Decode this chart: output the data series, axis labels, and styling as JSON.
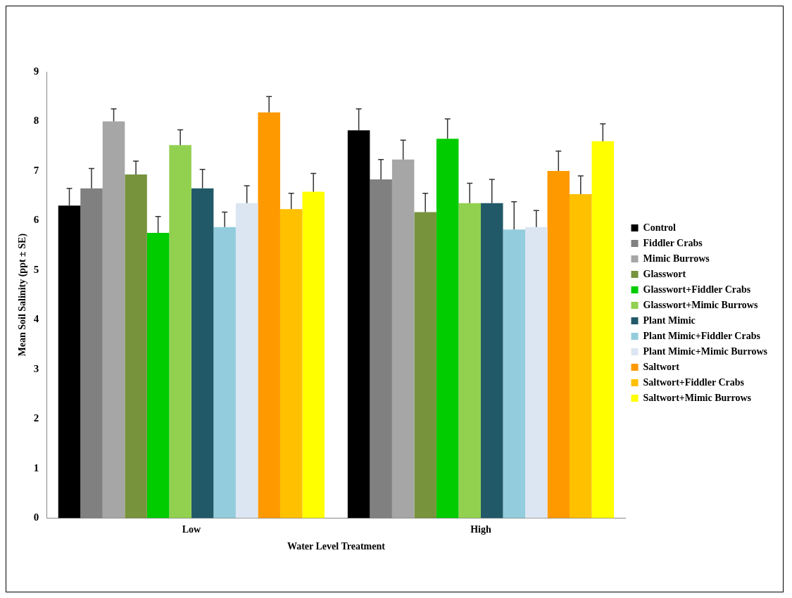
{
  "chart_data": {
    "type": "bar",
    "xlabel": "Water Level Treatment",
    "ylabel": "Mean Soil Salinity (ppt ± SE)",
    "categories": [
      "Low",
      "High"
    ],
    "ylim": [
      0,
      9
    ],
    "yticks": [
      0,
      1,
      2,
      3,
      4,
      5,
      6,
      7,
      8,
      9
    ],
    "grid": false,
    "legend": "right",
    "series": [
      {
        "name": "Control",
        "color": "#000000",
        "values": [
          6.3,
          7.82
        ],
        "errors": [
          [
            6.3,
            6.65
          ],
          [
            7.82,
            8.25
          ]
        ]
      },
      {
        "name": "Fiddler Crabs",
        "color": "#808080",
        "values": [
          6.65,
          6.83
        ],
        "errors": [
          [
            6.65,
            7.05
          ],
          [
            6.83,
            7.23
          ]
        ]
      },
      {
        "name": "Mimic Burrows",
        "color": "#a6a6a6",
        "values": [
          8.0,
          7.23
        ],
        "errors": [
          [
            8.0,
            8.25
          ],
          [
            7.23,
            7.62
          ]
        ]
      },
      {
        "name": "Glasswort",
        "color": "#77933c",
        "values": [
          6.93,
          6.17
        ],
        "errors": [
          [
            6.93,
            7.2
          ],
          [
            6.17,
            6.55
          ]
        ]
      },
      {
        "name": "Glasswort+Fiddler Crabs",
        "color": "#00cc00",
        "values": [
          5.75,
          7.65
        ],
        "errors": [
          [
            5.75,
            6.08
          ],
          [
            7.65,
            8.05
          ]
        ]
      },
      {
        "name": "Glasswort+Mimic Burrows",
        "color": "#92d050",
        "values": [
          7.52,
          6.35
        ],
        "errors": [
          [
            7.52,
            7.83
          ],
          [
            6.35,
            6.75
          ]
        ]
      },
      {
        "name": "Plant Mimic",
        "color": "#215968",
        "values": [
          6.65,
          6.35
        ],
        "errors": [
          [
            6.65,
            7.03
          ],
          [
            6.35,
            6.83
          ]
        ]
      },
      {
        "name": "Plant Mimic+Fiddler Crabs",
        "color": "#93cddd",
        "values": [
          5.87,
          5.82
        ],
        "errors": [
          [
            5.87,
            6.17
          ],
          [
            5.82,
            6.38
          ]
        ]
      },
      {
        "name": "Plant Mimic+Mimic Burrows",
        "color": "#dce6f2",
        "values": [
          6.35,
          5.87
        ],
        "errors": [
          [
            6.35,
            6.7
          ],
          [
            5.87,
            6.2
          ]
        ]
      },
      {
        "name": "Saltwort",
        "color": "#ff9900",
        "values": [
          8.18,
          7.0
        ],
        "errors": [
          [
            8.18,
            8.5
          ],
          [
            7.0,
            7.4
          ]
        ]
      },
      {
        "name": "Saltwort+Fiddler Crabs",
        "color": "#ffc000",
        "values": [
          6.23,
          6.53
        ],
        "errors": [
          [
            6.23,
            6.55
          ],
          [
            6.53,
            6.9
          ]
        ]
      },
      {
        "name": "Saltwort+Mimic Burrows",
        "color": "#ffff00",
        "values": [
          6.58,
          7.6
        ],
        "errors": [
          [
            6.58,
            6.95
          ],
          [
            7.6,
            7.95
          ]
        ]
      }
    ]
  }
}
